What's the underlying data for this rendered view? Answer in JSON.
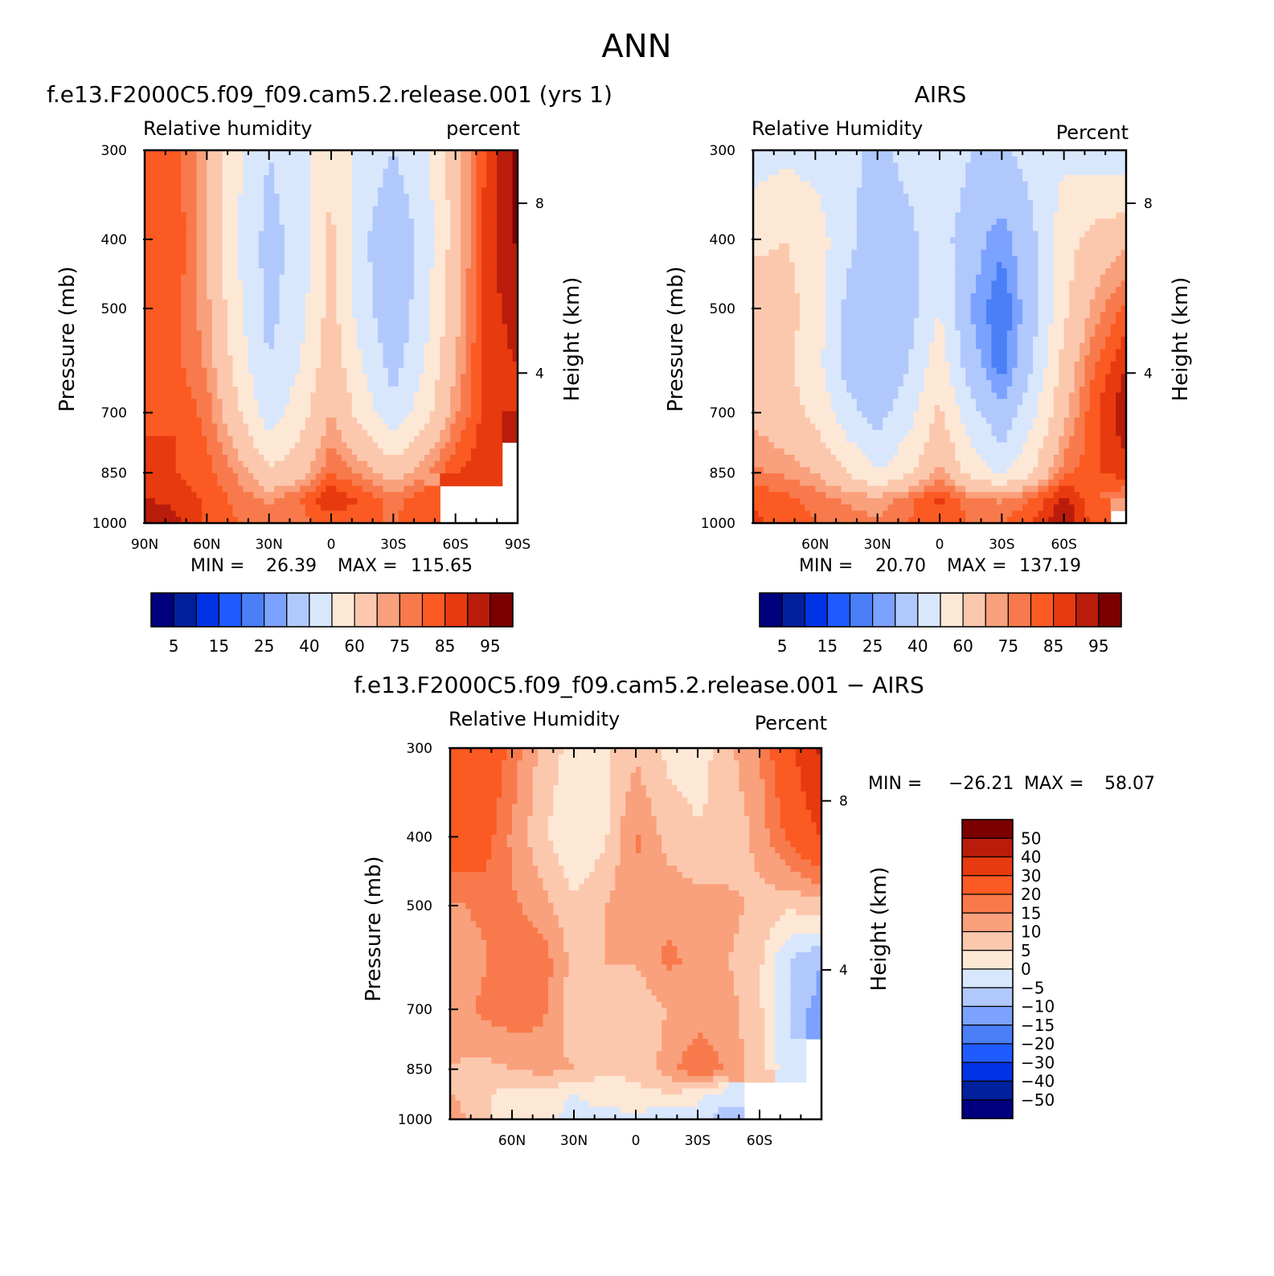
{
  "page": {
    "title": "ANN"
  },
  "colors": {
    "rh_palette": [
      "#00007f",
      "#00209c",
      "#0033e6",
      "#1f5bff",
      "#4a7ff7",
      "#7ba2ff",
      "#b1c8fd",
      "#d9e7fc",
      "#fde8d6",
      "#fcc8ad",
      "#f9a07c",
      "#f87a4c",
      "#fb5a22",
      "#e83a0f",
      "#b91c0a",
      "#7c0000"
    ],
    "diff_palette": [
      "#00007f",
      "#00209c",
      "#0033e6",
      "#1f5bff",
      "#4a7ff7",
      "#7ba2ff",
      "#b1c8fd",
      "#d9e7fc",
      "#fde8d6",
      "#fcc8ad",
      "#f9a07c",
      "#f87a4c",
      "#fb5a22",
      "#e83a0f",
      "#b91c0a",
      "#7c0000"
    ]
  },
  "chart_data": [
    {
      "type": "heatmap",
      "subtitle": "f.e13.F2000C5.f09_f09.cam5.2.release.001 (yrs 1)",
      "left_label": "Relative humidity",
      "right_label": "percent",
      "ylabel": "Pressure (mb)",
      "ylabel_right": "Height (km)",
      "x_ticks": [
        "90N",
        "60N",
        "30N",
        "0",
        "30S",
        "60S",
        "90S"
      ],
      "xlim": [
        90,
        -90
      ],
      "y_ticks": [
        300,
        400,
        500,
        700,
        850,
        1000
      ],
      "ylim": [
        1000,
        300
      ],
      "height_ticks": [
        {
          "label": "8",
          "pressure": 356
        },
        {
          "label": "4",
          "pressure": 616
        }
      ],
      "min_label": "MIN =",
      "min_value": "26.39",
      "max_label": "MAX =",
      "max_value": "115.65",
      "levels": [
        5,
        10,
        15,
        20,
        25,
        30,
        40,
        50,
        60,
        70,
        75,
        80,
        85,
        90,
        95
      ],
      "colorbar_labels": [
        "5",
        "15",
        "25",
        "40",
        "60",
        "75",
        "85",
        "95"
      ],
      "field": {
        "lat": [
          90,
          75,
          60,
          45,
          30,
          15,
          0,
          -15,
          -30,
          -45,
          -60,
          -75,
          -90
        ],
        "pressure": [
          300,
          400,
          500,
          600,
          700,
          850,
          925,
          1000
        ],
        "rh": [
          [
            83,
            82,
            70,
            52,
            40,
            46,
            60,
            45,
            40,
            46,
            65,
            86,
            98
          ],
          [
            85,
            84,
            70,
            50,
            36,
            44,
            62,
            42,
            32,
            44,
            65,
            88,
            96
          ],
          [
            83,
            82,
            72,
            52,
            37,
            46,
            64,
            44,
            32,
            46,
            67,
            88,
            92
          ],
          [
            82,
            82,
            74,
            56,
            40,
            50,
            67,
            50,
            36,
            50,
            70,
            88,
            90
          ],
          [
            84,
            85,
            78,
            62,
            44,
            56,
            70,
            56,
            42,
            56,
            74,
            88,
            90
          ],
          [
            87,
            85,
            82,
            74,
            62,
            66,
            80,
            74,
            66,
            74,
            85,
            88,
            null
          ],
          [
            90,
            88,
            84,
            78,
            74,
            80,
            90,
            84,
            78,
            84,
            null,
            null,
            null
          ],
          [
            96,
            92,
            84,
            80,
            76,
            78,
            82,
            80,
            80,
            82,
            null,
            null,
            null
          ]
        ]
      }
    },
    {
      "type": "heatmap",
      "subtitle": "AIRS",
      "left_label": "Relative Humidity",
      "right_label": "Percent",
      "ylabel": "Pressure (mb)",
      "ylabel_right": "Height (km)",
      "x_ticks": [
        "",
        "60N",
        "30N",
        "0",
        "30S",
        "60S",
        ""
      ],
      "xlim": [
        90,
        -90
      ],
      "y_ticks": [
        300,
        400,
        500,
        700,
        850,
        1000
      ],
      "ylim": [
        1000,
        300
      ],
      "height_ticks": [
        {
          "label": "8",
          "pressure": 356
        },
        {
          "label": "4",
          "pressure": 616
        }
      ],
      "min_label": "MIN =",
      "min_value": "20.70",
      "max_label": "MAX =",
      "max_value": "137.19",
      "levels": [
        5,
        10,
        15,
        20,
        25,
        30,
        40,
        50,
        60,
        70,
        75,
        80,
        85,
        90,
        95
      ],
      "colorbar_labels": [
        "5",
        "15",
        "25",
        "40",
        "60",
        "75",
        "85",
        "95"
      ],
      "field": {
        "lat": [
          90,
          75,
          60,
          45,
          30,
          15,
          0,
          -15,
          -30,
          -45,
          -60,
          -75,
          -90
        ],
        "pressure": [
          300,
          400,
          500,
          600,
          700,
          850,
          925,
          1000
        ],
        "rh": [
          [
            45,
            48,
            46,
            42,
            38,
            42,
            48,
            40,
            38,
            44,
            48,
            46,
            44
          ],
          [
            58,
            60,
            56,
            42,
            36,
            38,
            44,
            34,
            26,
            38,
            56,
            64,
            68
          ],
          [
            66,
            64,
            56,
            38,
            30,
            36,
            50,
            30,
            20,
            36,
            58,
            72,
            82
          ],
          [
            66,
            62,
            54,
            36,
            30,
            40,
            56,
            34,
            22,
            40,
            64,
            80,
            90
          ],
          [
            68,
            64,
            58,
            44,
            36,
            46,
            62,
            44,
            32,
            48,
            68,
            84,
            94
          ],
          [
            76,
            74,
            70,
            60,
            50,
            58,
            72,
            56,
            48,
            60,
            78,
            84,
            88
          ],
          [
            84,
            82,
            78,
            74,
            72,
            78,
            86,
            76,
            74,
            80,
            92,
            80,
            74
          ],
          [
            86,
            84,
            80,
            78,
            76,
            80,
            84,
            80,
            80,
            86,
            96,
            82,
            null
          ]
        ]
      }
    },
    {
      "type": "heatmap",
      "subtitle": "f.e13.F2000C5.f09_f09.cam5.2.release.001 − AIRS",
      "left_label": "Relative Humidity",
      "right_label": "Percent",
      "ylabel": "Pressure (mb)",
      "ylabel_right": "Height (km)",
      "x_ticks": [
        "",
        "60N",
        "30N",
        "0",
        "30S",
        "60S",
        ""
      ],
      "xlim": [
        90,
        -90
      ],
      "y_ticks": [
        300,
        400,
        500,
        700,
        850,
        1000
      ],
      "ylim": [
        1000,
        300
      ],
      "height_ticks": [
        {
          "label": "8",
          "pressure": 356
        },
        {
          "label": "4",
          "pressure": 616
        }
      ],
      "min_label": "MIN =",
      "min_value": "−26.21",
      "max_label": "MAX =",
      "max_value": "58.07",
      "levels": [
        -50,
        -40,
        -30,
        -20,
        -15,
        -10,
        -5,
        0,
        5,
        10,
        15,
        20,
        30,
        40,
        50
      ],
      "colorbar_labels": [
        "50",
        "40",
        "30",
        "20",
        "15",
        "10",
        "5",
        "0",
        "−5",
        "−10",
        "−15",
        "−20",
        "−30",
        "−40",
        "−50"
      ],
      "field": {
        "lat": [
          90,
          75,
          60,
          45,
          30,
          15,
          0,
          -15,
          -30,
          -45,
          -60,
          -75,
          -90
        ],
        "pressure": [
          300,
          400,
          500,
          600,
          700,
          850,
          925,
          1000
        ],
        "rh": [
          [
            30,
            28,
            18,
            8,
            3,
            4,
            9,
            4,
            2,
            9,
            15,
            28,
            42
          ],
          [
            26,
            24,
            14,
            6,
            0,
            4,
            16,
            8,
            6,
            5,
            12,
            22,
            30
          ],
          [
            14,
            16,
            16,
            12,
            6,
            10,
            14,
            14,
            12,
            12,
            8,
            6,
            8
          ],
          [
            12,
            14,
            18,
            18,
            8,
            10,
            10,
            16,
            14,
            10,
            6,
            -6,
            -10
          ],
          [
            12,
            16,
            18,
            16,
            6,
            8,
            6,
            10,
            12,
            12,
            6,
            -6,
            -12
          ],
          [
            10,
            8,
            10,
            12,
            10,
            6,
            6,
            12,
            20,
            14,
            6,
            -4,
            null
          ],
          [
            10,
            6,
            2,
            2,
            0,
            2,
            4,
            4,
            2,
            -4,
            null,
            null,
            null
          ],
          [
            14,
            6,
            2,
            2,
            -2,
            -2,
            -2,
            -4,
            -4,
            -8,
            null,
            null,
            null
          ]
        ]
      }
    }
  ]
}
